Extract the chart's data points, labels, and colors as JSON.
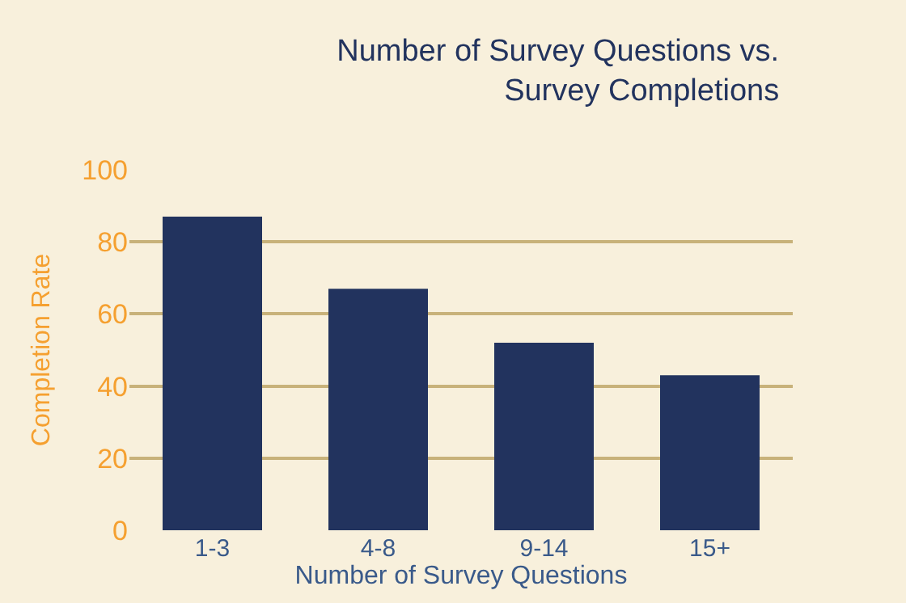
{
  "chart_data": {
    "type": "bar",
    "title": "Number of Survey Questions vs.\nSurvey Completions",
    "xlabel": "Number of Survey Questions",
    "ylabel": "Completion Rate",
    "categories": [
      "1-3",
      "4-8",
      "9-14",
      "15+"
    ],
    "values": [
      87,
      67,
      52,
      43
    ],
    "color": "#22335e",
    "ylim": [
      0,
      100
    ],
    "yticks": [
      0,
      20,
      40,
      60,
      80,
      100
    ],
    "grid": "y"
  }
}
